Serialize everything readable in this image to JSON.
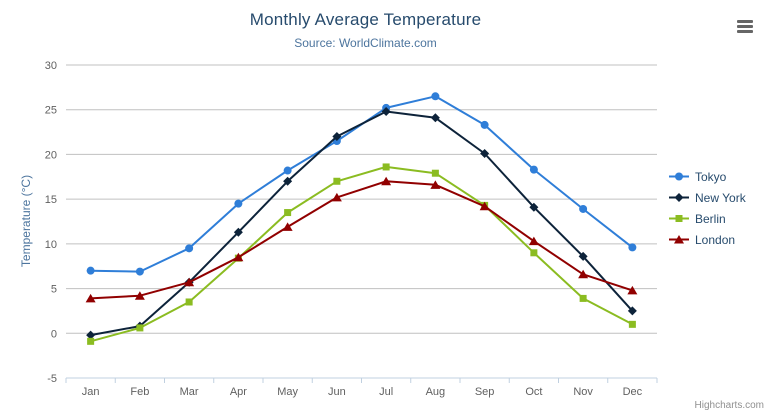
{
  "header": {
    "title": "Monthly Average Temperature",
    "subtitle": "Source: WorldClimate.com"
  },
  "export_menu": {
    "icon": "hamburger-icon"
  },
  "credits": {
    "label": "Highcharts.com"
  },
  "colors": {
    "title": "#274b6d",
    "subtitle": "#4d759e",
    "axis_title": "#4d759e",
    "tick_label": "#606060",
    "gridline": "#c0c0c0",
    "axis_line": "#c0d0e0",
    "legend_text": "#274b6d",
    "credits_text": "#909090",
    "export_icon": "#666666",
    "background": "#ffffff"
  },
  "chart_data": {
    "type": "line",
    "title": "Monthly Average Temperature",
    "subtitle": "Source: WorldClimate.com",
    "categories": [
      "Jan",
      "Feb",
      "Mar",
      "Apr",
      "May",
      "Jun",
      "Jul",
      "Aug",
      "Sep",
      "Oct",
      "Nov",
      "Dec"
    ],
    "series": [
      {
        "name": "Tokyo",
        "color": "#2f7ed8",
        "marker": "circle",
        "values": [
          7.0,
          6.9,
          9.5,
          14.5,
          18.2,
          21.5,
          25.2,
          26.5,
          23.3,
          18.3,
          13.9,
          9.6
        ]
      },
      {
        "name": "New York",
        "color": "#0d233a",
        "marker": "diamond",
        "values": [
          -0.2,
          0.8,
          5.7,
          11.3,
          17.0,
          22.0,
          24.8,
          24.1,
          20.1,
          14.1,
          8.6,
          2.5
        ]
      },
      {
        "name": "Berlin",
        "color": "#8bbc21",
        "marker": "square",
        "values": [
          -0.9,
          0.6,
          3.5,
          8.4,
          13.5,
          17.0,
          18.6,
          17.9,
          14.3,
          9.0,
          3.9,
          1.0
        ]
      },
      {
        "name": "London",
        "color": "#910000",
        "marker": "triangle",
        "values": [
          3.9,
          4.2,
          5.7,
          8.5,
          11.9,
          15.2,
          17.0,
          16.6,
          14.2,
          10.3,
          6.6,
          4.8
        ]
      }
    ],
    "xlabel": "",
    "ylabel": "Temperature (°C)",
    "ylim": [
      -5,
      30
    ],
    "ytick_step": 5,
    "grid": true,
    "legend_position": "right"
  }
}
